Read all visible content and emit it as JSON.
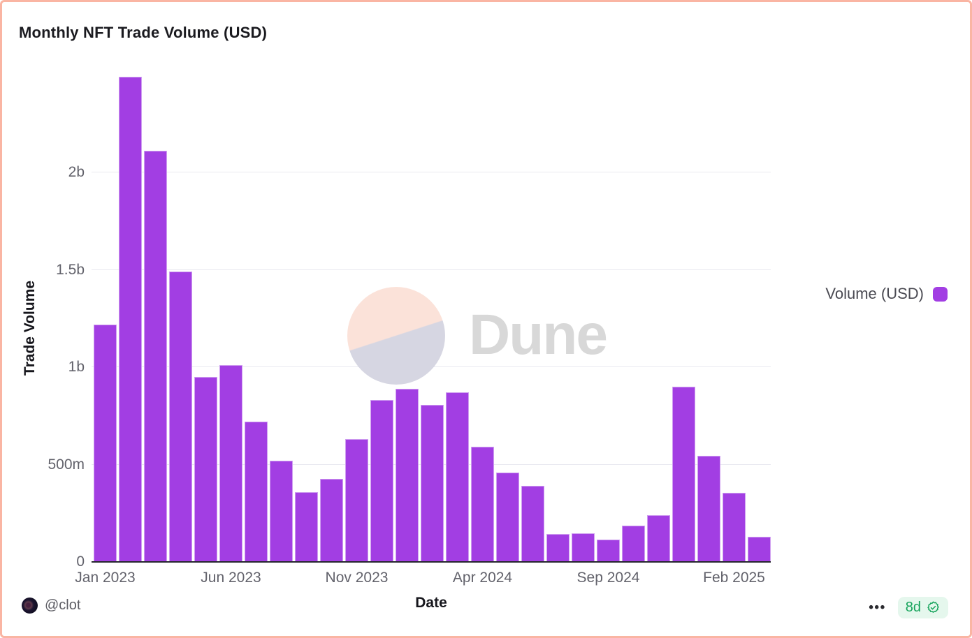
{
  "watermark": {
    "text": "Dune"
  },
  "footer": {
    "author": "@clot",
    "menu_dots": "•••",
    "age_badge": "8d"
  },
  "colors": {
    "bar": "#a23ee3",
    "frame": "#fab5a3",
    "badge_bg": "#e5f7ed",
    "badge_text": "#16a45c",
    "watermark_top": "#fbe2d9",
    "watermark_bottom": "#d6d6e2",
    "watermark_text": "#d8d8d8"
  },
  "chart_data": {
    "type": "bar",
    "title": "Monthly NFT Trade Volume (USD)",
    "xlabel": "Date",
    "ylabel": "Trade Volume",
    "legend_position": "right",
    "grid": true,
    "value_units": "million USD",
    "ylim_musd": [
      0,
      2550
    ],
    "y_ticks": [
      {
        "label": "0",
        "value_musd": 0
      },
      {
        "label": "500m",
        "value_musd": 500
      },
      {
        "label": "1b",
        "value_musd": 1000
      },
      {
        "label": "1.5b",
        "value_musd": 1500
      },
      {
        "label": "2b",
        "value_musd": 2000
      }
    ],
    "x_ticks": [
      {
        "index": 0,
        "label": "Jan 2023"
      },
      {
        "index": 5,
        "label": "Jun 2023"
      },
      {
        "index": 10,
        "label": "Nov 2023"
      },
      {
        "index": 15,
        "label": "Apr 2024"
      },
      {
        "index": 20,
        "label": "Sep 2024"
      },
      {
        "index": 25,
        "label": "Feb 2025"
      }
    ],
    "categories": [
      "Jan 2023",
      "Feb 2023",
      "Mar 2023",
      "Apr 2023",
      "May 2023",
      "Jun 2023",
      "Jul 2023",
      "Aug 2023",
      "Sep 2023",
      "Oct 2023",
      "Nov 2023",
      "Dec 2023",
      "Jan 2024",
      "Feb 2024",
      "Mar 2024",
      "Apr 2024",
      "May 2024",
      "Jun 2024",
      "Jul 2024",
      "Aug 2024",
      "Sep 2024",
      "Oct 2024",
      "Nov 2024",
      "Dec 2024",
      "Jan 2025",
      "Feb 2025",
      "Mar 2025"
    ],
    "series": [
      {
        "name": "Volume (USD)",
        "color": "#a23ee3",
        "values_musd": [
          1220,
          2490,
          2110,
          1490,
          950,
          1010,
          720,
          520,
          360,
          425,
          630,
          830,
          890,
          805,
          870,
          590,
          460,
          390,
          145,
          147,
          115,
          185,
          240,
          900,
          545,
          355,
          130
        ]
      }
    ]
  }
}
